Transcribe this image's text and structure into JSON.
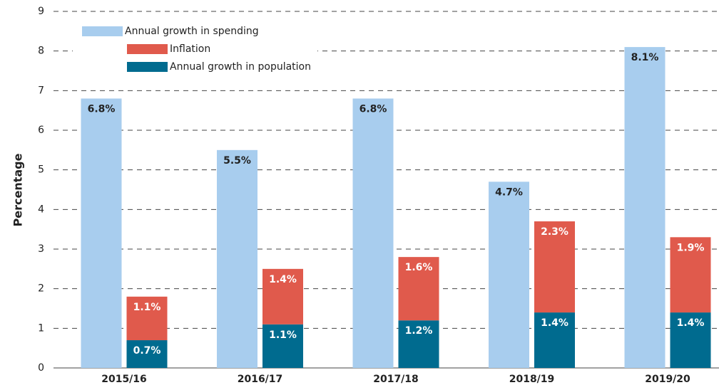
{
  "chart_data": {
    "type": "bar",
    "categories": [
      "2015/16",
      "2016/17",
      "2017/18",
      "2018/19",
      "2019/20"
    ],
    "series": [
      {
        "name": "Annual growth in spending",
        "color": "#a8cdee",
        "stack": "a",
        "values": [
          6.8,
          5.5,
          6.8,
          4.7,
          8.1
        ],
        "value_labels": [
          "6.8%",
          "5.5%",
          "6.8%",
          "4.7%",
          "8.1%"
        ]
      },
      {
        "name": "Inflation",
        "color": "#e05a4c",
        "stack": "b",
        "values": [
          1.1,
          1.4,
          1.6,
          2.3,
          1.9
        ],
        "value_labels": [
          "1.1%",
          "1.4%",
          "1.6%",
          "2.3%",
          "1.9%"
        ]
      },
      {
        "name": "Annual growth in population",
        "color": "#006b8f",
        "stack": "b",
        "values": [
          0.7,
          1.1,
          1.2,
          1.4,
          1.4
        ],
        "value_labels": [
          "0.7%",
          "1.1%",
          "1.2%",
          "1.4%",
          "1.4%"
        ]
      }
    ],
    "ylabel": "Percentage",
    "ylim": [
      0,
      9
    ],
    "yticks": [
      0,
      1,
      2,
      3,
      4,
      5,
      6,
      7,
      8,
      9
    ],
    "grid": true
  }
}
